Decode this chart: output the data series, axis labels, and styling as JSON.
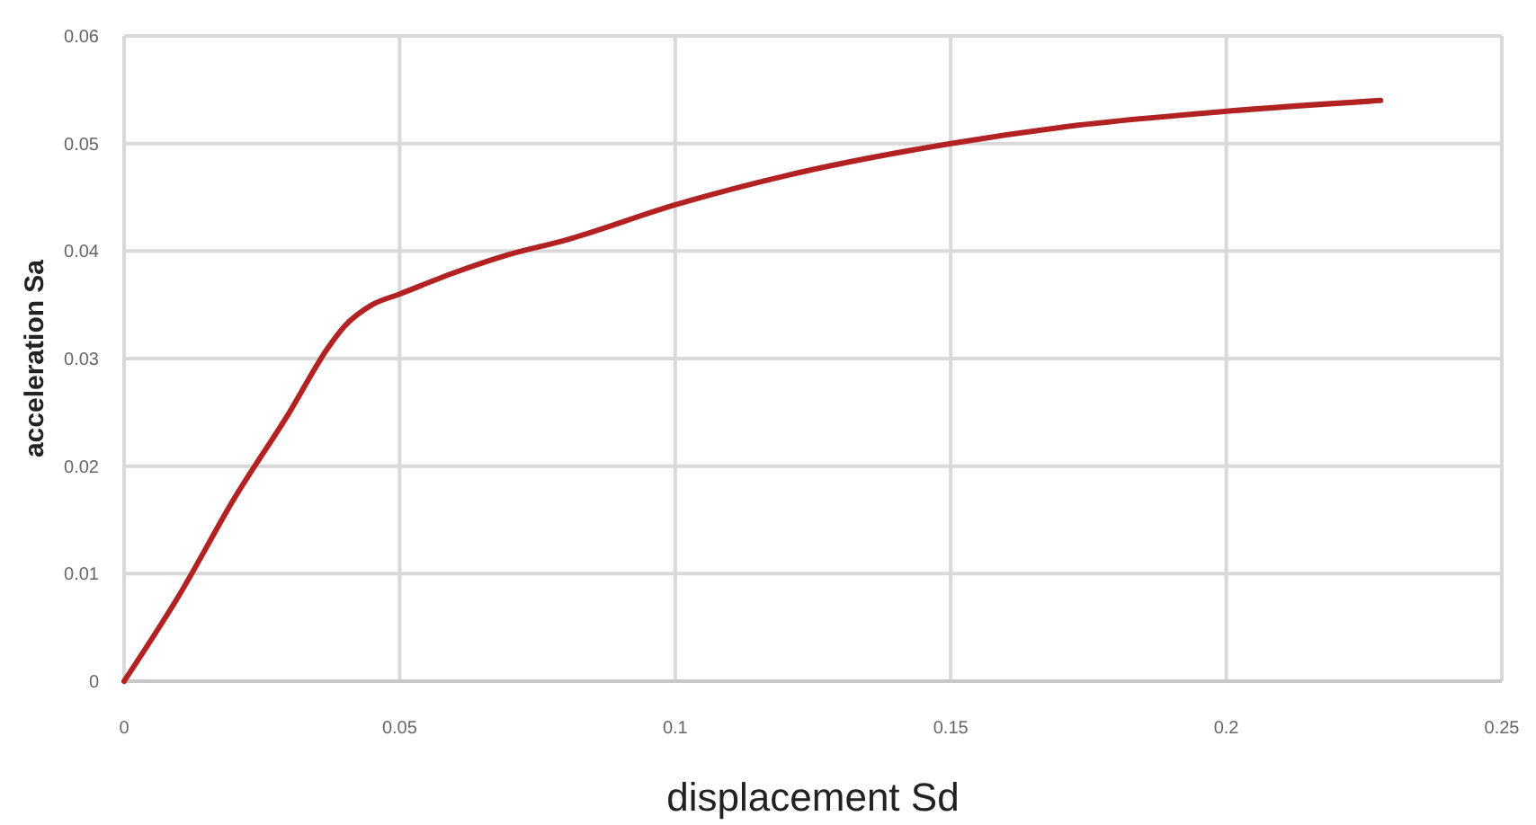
{
  "chart_data": {
    "type": "line",
    "xlabel": "displacement  Sd",
    "ylabel": "acceleration Sa",
    "x": [
      0,
      0.01,
      0.02,
      0.03,
      0.037,
      0.04,
      0.045,
      0.05,
      0.06,
      0.07,
      0.08,
      0.1,
      0.12,
      0.15,
      0.17,
      0.2,
      0.228
    ],
    "series": [
      {
        "color": "#b22222",
        "values": [
          0,
          0.008,
          0.017,
          0.025,
          0.031,
          0.033,
          0.035,
          0.036,
          0.038,
          0.0397,
          0.041,
          0.0443,
          0.047,
          0.05,
          0.0515,
          0.053,
          0.054
        ]
      }
    ],
    "xlim": [
      0,
      0.25
    ],
    "xticks": [
      0,
      0.05,
      0.1,
      0.15,
      0.2,
      0.25
    ],
    "ylim": [
      0,
      0.06
    ],
    "yticks": [
      0,
      0.01,
      0.02,
      0.03,
      0.04,
      0.05,
      0.06
    ],
    "grid": true,
    "marker": "none",
    "line_style": "solid"
  }
}
